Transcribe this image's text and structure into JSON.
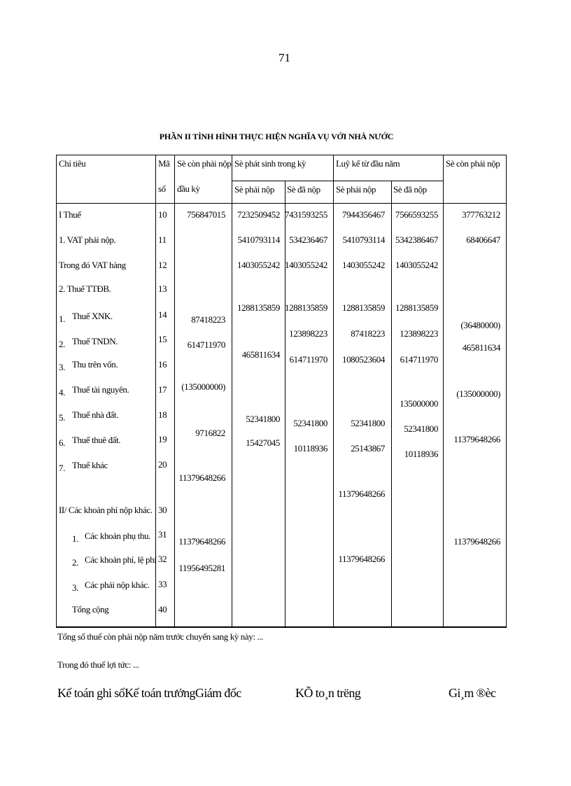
{
  "page_number": "71",
  "title": "PHẦN II TÌNH HÌNH THỰC HIỆN NGHĨA VỤ VỚI NHÀ NƯỚC",
  "table": {
    "headers": {
      "chi_tieu": "Chỉ tiêu",
      "ma_so_1": "Mã",
      "ma_so_2": "số",
      "con_dau_ky_1": "Sè còn phải nộp",
      "con_dau_ky_2": "đầu kỳ",
      "phat_sinh": "Sè phát sinh trong kỳ",
      "luy_ke": "Luỹ kế từ đầu năm",
      "con_cuoi": "Sè còn phải nộp",
      "phai_nop": "Sè phải nộp",
      "da_nop": "Sè đã nộp"
    },
    "rows": [
      {
        "num": "",
        "label": "I Thuế",
        "code": "10"
      },
      {
        "num": "",
        "label": "1. VAT phải nộp.",
        "code": "11"
      },
      {
        "num": "",
        "label": "Trong đó VAT hàng",
        "code": "12"
      },
      {
        "num": "",
        "label": "2. Thuế TTĐB.",
        "code": "13"
      },
      {
        "num": "1.",
        "label": "Thuế XNK.",
        "code": "14"
      },
      {
        "num": "2.",
        "label": "Thuế TNDN.",
        "code": "15"
      },
      {
        "num": "3.",
        "label": "Thu trên vốn.",
        "code": "16"
      },
      {
        "num": "4.",
        "label": "Thuế tài nguyên.",
        "code": "17"
      },
      {
        "num": "5.",
        "label": "Thuế nhà đất.",
        "code": "18"
      },
      {
        "num": "6.",
        "label": "Thuế thuê đất.",
        "code": "19"
      },
      {
        "num": "7.",
        "label": "Thuế khác",
        "code": "20"
      },
      {
        "num": "",
        "label": "II/ Các khoản phí nộp khác.",
        "code": "30"
      },
      {
        "num": "1.",
        "label": "Các khoản phụ thu.",
        "code": "31"
      },
      {
        "num": "2.",
        "label": "Các khoản phí, lệ phí",
        "code": "32"
      },
      {
        "num": "3.",
        "label": "Các phải nộp khác.",
        "code": "33"
      },
      {
        "num": "",
        "label": "Tổng cộng",
        "code": "40"
      }
    ],
    "col_con_dau_ky": [
      "756847015",
      "87418223",
      "614711970",
      "(135000000)",
      "9716822",
      "11379648266",
      "11379648266",
      "11956495281"
    ],
    "col_ps_phai_nop": [
      "7232509452",
      "5410793114",
      "1403055242",
      "1288135859",
      "465811634",
      "52341800",
      "15427045"
    ],
    "col_ps_da_nop": [
      "7431593255",
      "534236467",
      "1403055242",
      "1288135859",
      "123898223",
      "614711970",
      "52341800",
      "10118936"
    ],
    "col_lk_phai_nop": [
      "7944356467",
      "5410793114",
      "1403055242",
      "1288135859",
      "87418223",
      "1080523604",
      "52341800",
      "25143867",
      "11379648266",
      "11379648266"
    ],
    "col_lk_da_nop": [
      "7566593255",
      "5342386467",
      "1403055242",
      "1288135859",
      "123898223",
      "614711970",
      "135000000",
      "52341800",
      "10118936"
    ],
    "col_con_cuoi": [
      "377763212",
      "68406647",
      "(36480000)",
      "465811634",
      "(135000000)",
      "11379648266",
      "11379648266"
    ]
  },
  "notes": {
    "line1": "Tổng số thuế còn phải nộp năm trước chuyển sang kỳ này: ...",
    "line2": "Trong đó thuế lợi tức: ..."
  },
  "signatures": {
    "left": "Kế toán ghi sổKế toán trưởngGiám đốc",
    "middle": "KÕ to¸n tr­ëng",
    "right": "Gi¸m ®èc"
  }
}
